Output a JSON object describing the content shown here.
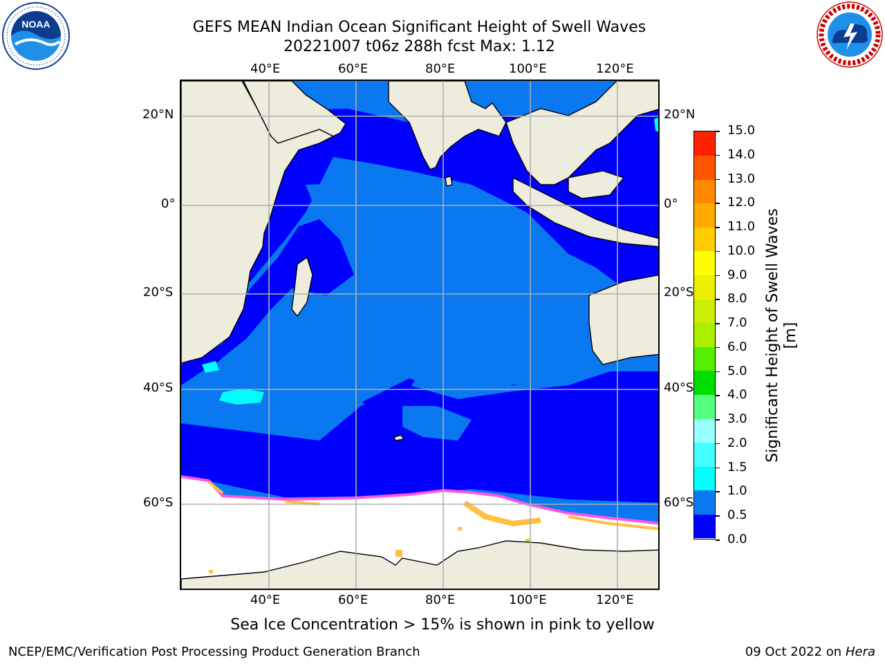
{
  "header": {
    "title_line1": "GEFS MEAN Indian Ocean Significant Height of Swell Waves",
    "title_line2": "20221007 t06z 288h fcst   Max: 1.12"
  },
  "logos": {
    "left": "NOAA",
    "right": "NATIONAL WEATHER SERVICE"
  },
  "map": {
    "region": "Indian Ocean",
    "lon_top_labels": [
      "40°E",
      "60°E",
      "80°E",
      "100°E",
      "120°E"
    ],
    "lon_bottom_labels": [
      "40°E",
      "60°E",
      "80°E",
      "100°E",
      "120°E"
    ],
    "lat_left_labels": [
      "20°N",
      "0°",
      "20°S",
      "40°S",
      "60°S"
    ],
    "lat_right_labels": [
      "20°N",
      "0°",
      "20°S",
      "40°S",
      "60°S"
    ],
    "grid": true,
    "colors": {
      "land": "#eeecdc",
      "deep_blue": "#0000ff",
      "mid_blue": "#0a78f0",
      "cyan": "#00ffff",
      "ice_white": "#ffffff",
      "ice_pink": "#ff55dd",
      "ice_yellow": "#ffc040"
    }
  },
  "colorbar": {
    "title": "Significant Height of Swell Waves [m]",
    "tick_labels": [
      "15.0",
      "14.0",
      "13.0",
      "12.0",
      "11.0",
      "10.0",
      "9.0",
      "8.0",
      "7.0",
      "6.0",
      "5.0",
      "4.0",
      "3.0",
      "2.0",
      "1.5",
      "1.0",
      "0.5",
      "0.0"
    ],
    "colors_bottom_to_top": [
      "#0000ff",
      "#0a78f0",
      "#00ffff",
      "#44ffff",
      "#99ffff",
      "#55ff80",
      "#00dd00",
      "#55ee00",
      "#aaee00",
      "#ccee00",
      "#eeee00",
      "#ffff00",
      "#ffcc00",
      "#ffaa00",
      "#ff8800",
      "#ff5500",
      "#ff2200"
    ]
  },
  "footnote": "Sea Ice Concentration > 15% is shown in pink to yellow",
  "footer": {
    "left": "NCEP/EMC/Verification Post Processing Product Generation Branch",
    "right_prefix": "09 Oct 2022 on ",
    "right_host": "Hera"
  }
}
